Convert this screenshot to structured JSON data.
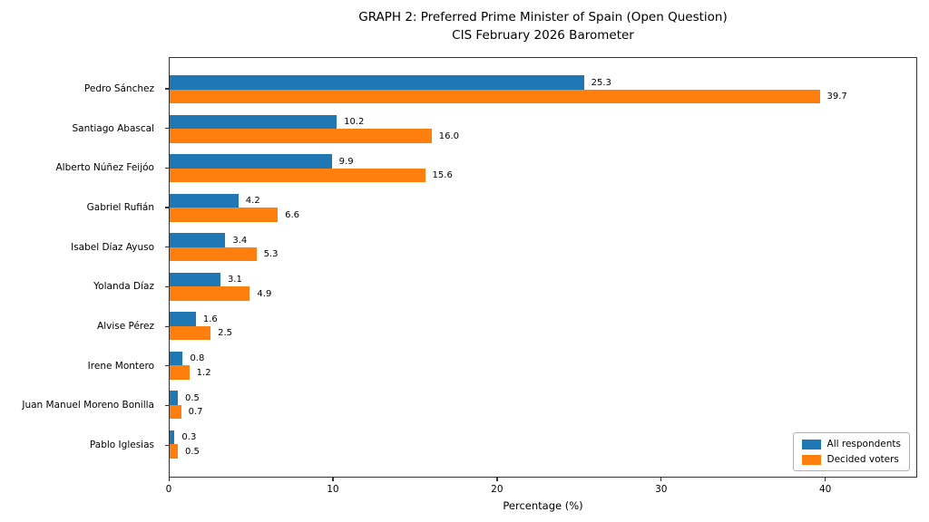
{
  "title": {
    "line1": "GRAPH 2: Preferred Prime Minister of Spain (Open Question)",
    "line2": "CIS February 2026 Barometer"
  },
  "chart_data": {
    "type": "bar",
    "orientation": "horizontal",
    "title": "GRAPH 2: Preferred Prime Minister of Spain (Open Question)\nCIS February 2026 Barometer",
    "xlabel": "Percentage (%)",
    "ylabel": "",
    "categories": [
      "Pedro Sánchez",
      "Santiago Abascal",
      "Alberto Núñez Feijóo",
      "Gabriel Rufián",
      "Isabel Díaz Ayuso",
      "Yolanda Díaz",
      "Alvise Pérez",
      "Irene Montero",
      "Juan Manuel Moreno Bonilla",
      "Pablo Iglesias"
    ],
    "series": [
      {
        "name": "All respondents",
        "color": "#1f77b4",
        "values": [
          25.3,
          10.2,
          9.9,
          4.2,
          3.4,
          3.1,
          1.6,
          0.8,
          0.5,
          0.3
        ]
      },
      {
        "name": "Decided voters",
        "color": "#ff7f0e",
        "values": [
          39.7,
          16.0,
          15.6,
          6.6,
          5.3,
          4.9,
          2.5,
          1.2,
          0.7,
          0.5
        ]
      }
    ],
    "x_ticks": [
      0,
      10,
      20,
      30,
      40
    ],
    "xlim": [
      0,
      45.6
    ],
    "grid": false,
    "value_labels": true,
    "value_label_decimals": 1,
    "legend_position": "lower right"
  },
  "legend": {
    "items": [
      {
        "label": "All respondents",
        "color": "#1f77b4"
      },
      {
        "label": "Decided voters",
        "color": "#ff7f0e"
      }
    ]
  }
}
